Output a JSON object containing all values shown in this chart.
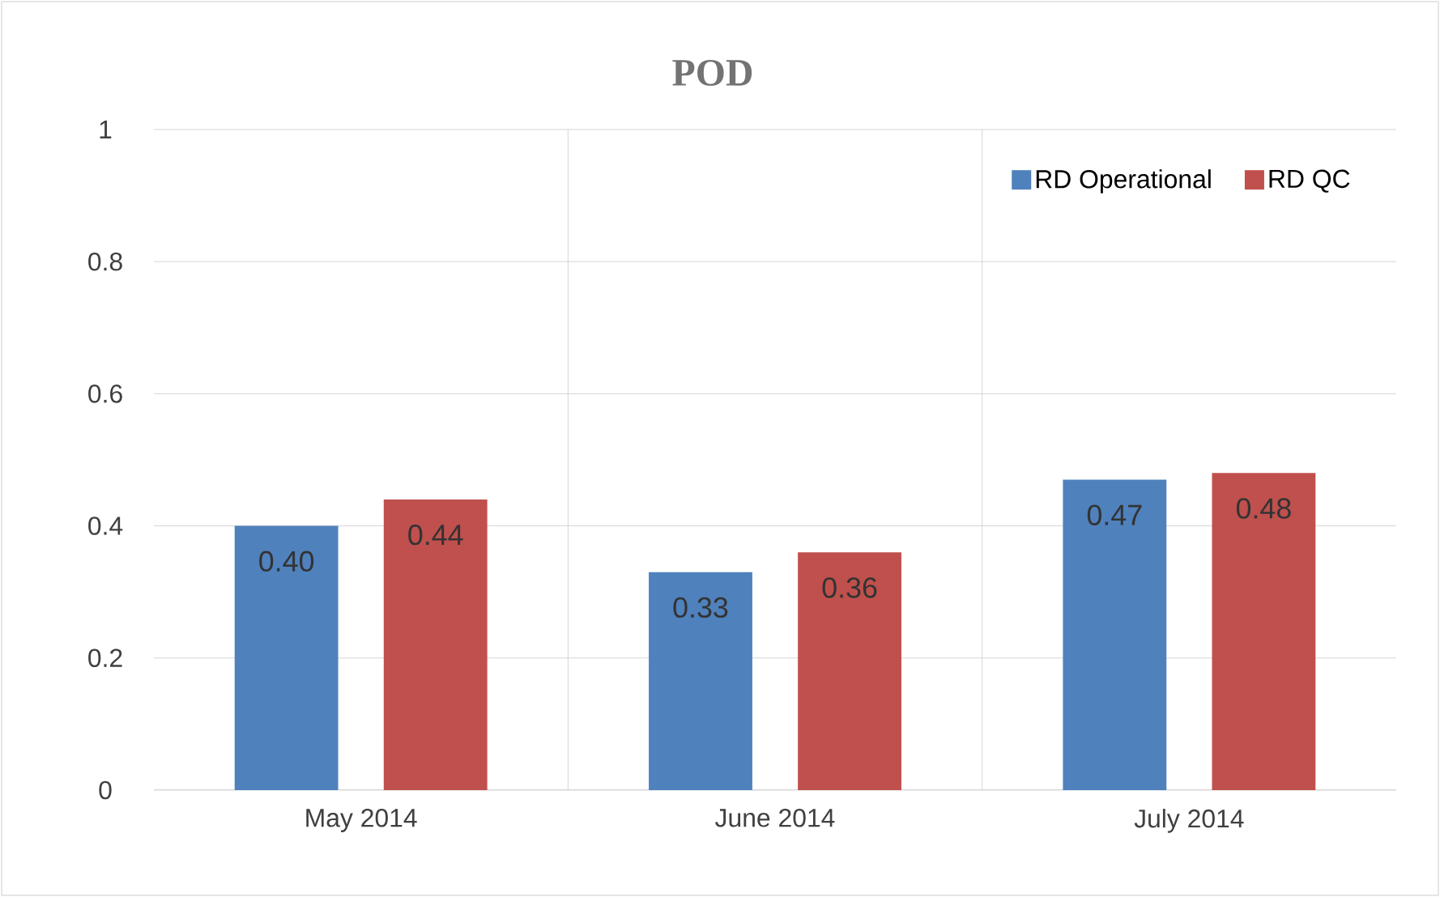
{
  "chart_data": {
    "type": "bar",
    "title": "POD",
    "categories": [
      "May 2014",
      "June 2014",
      "July 2014"
    ],
    "series": [
      {
        "name": "RD Operational",
        "color": "#4f81bd",
        "values": [
          0.4,
          0.33,
          0.47
        ],
        "value_labels": [
          "0.40",
          "0.33",
          "0.47"
        ]
      },
      {
        "name": "RD QC",
        "color": "#c0504d",
        "values": [
          0.44,
          0.36,
          0.48
        ],
        "value_labels": [
          "0.44",
          "0.36",
          "0.48"
        ]
      }
    ],
    "ylim": [
      0,
      1
    ],
    "yticks": [
      0,
      0.2,
      0.4,
      0.6,
      0.8,
      1
    ],
    "grid": true,
    "legend": "top right"
  }
}
